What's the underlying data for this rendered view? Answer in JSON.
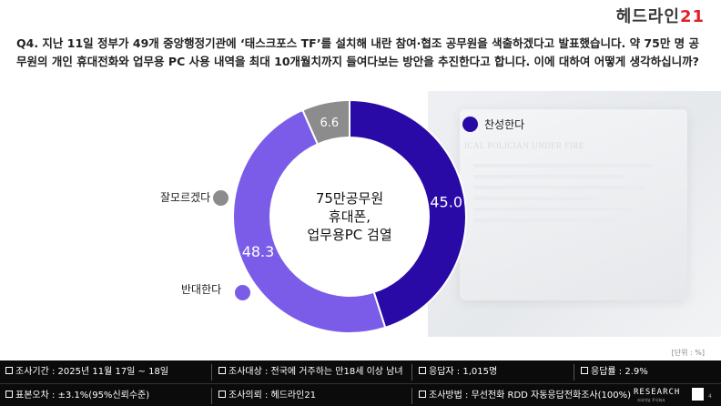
{
  "logo": {
    "text": "헤드라인",
    "number": "21"
  },
  "question": "Q4. 지난 11일 정부가 49개 중앙행정기관에 ‘태스크포스 TF’를 설치해 내란 참여·협조 공무원을 색출하겠다고 발표했습니다. 약 75만 명 공무원의 개인 휴대전화와 업무용 PC 사용 내역을 최대 10개월치까지 들여다보는 방안을 추진한다고 합니다. 이에 대하여 어떻게 생각하십니까?",
  "background_text": "ICAL POLICIAN UNDER FIRE",
  "chart_data": {
    "type": "pie",
    "donut": true,
    "center_label": [
      "75만공무원",
      "휴대폰,",
      "업무용PC 검열"
    ],
    "categories": [
      "찬성한다",
      "반대한다",
      "잘모르겠다"
    ],
    "values": [
      45.0,
      48.3,
      6.6
    ],
    "value_labels": [
      "45.0",
      "48.3",
      "6.6"
    ],
    "colors": [
      "#2a0aa6",
      "#7a5ce8",
      "#8c8c8c"
    ],
    "start_angle_deg": 0,
    "direction": "clockwise"
  },
  "unit_note": "[단위 : %]",
  "footer": {
    "period": "조사기간 : 2025년 11월 17일 ~ 18일",
    "target": "조사대상 : 전국에 거주하는 만18세 이상 남녀",
    "respondents": "응답자 : 1,015명",
    "response_rate": "응답률 : 2.9%",
    "margin_error": "표본오차 : ±3.1%(95%신뢰수준)",
    "client": "조사의뢰 : 헤드라인21",
    "method": "조사방법 : 무선전화 RDD 자동응답전화조사(100%)",
    "brand": "RESEARCH",
    "brand_sub": "리서치뷰 주식회사",
    "page": "4"
  }
}
